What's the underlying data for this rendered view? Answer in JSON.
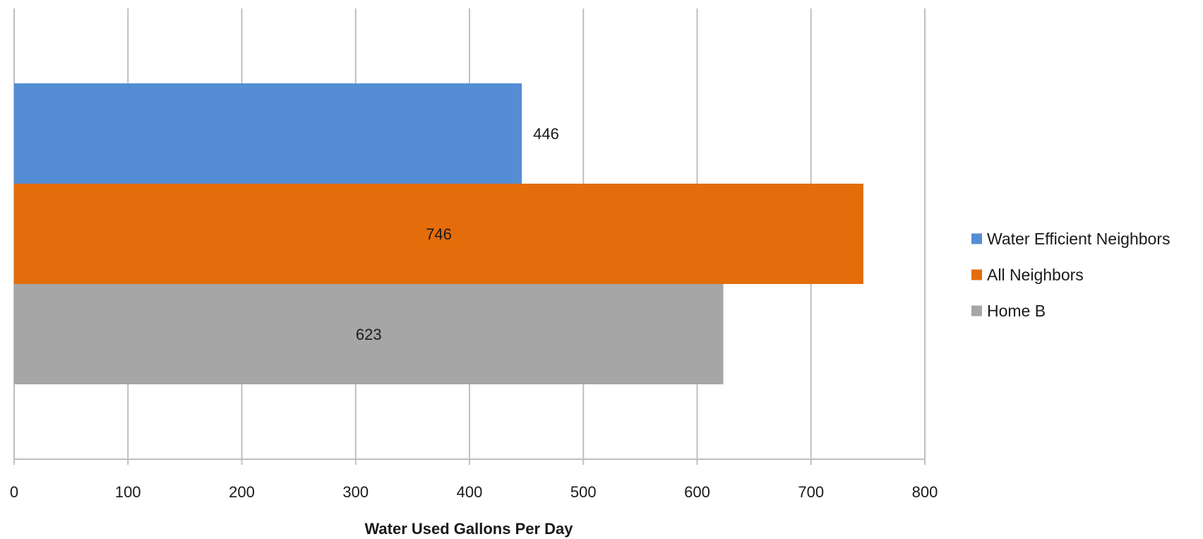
{
  "chart_data": {
    "type": "bar",
    "orientation": "horizontal",
    "title": "",
    "xlabel": "Water Used Gallons Per Day",
    "ylabel": "",
    "xlim": [
      0,
      800
    ],
    "x_ticks": [
      0,
      100,
      200,
      300,
      400,
      500,
      600,
      700,
      800
    ],
    "grid": true,
    "legend_position": "right",
    "series": [
      {
        "name": "Water Efficient Neighbors",
        "value": 446,
        "label": "446",
        "color": "#548DD4"
      },
      {
        "name": "All Neighbors",
        "value": 746,
        "label": "746",
        "color": "#E46C0A"
      },
      {
        "name": "Home B",
        "value": 623,
        "label": "623",
        "color": "#A6A6A6"
      }
    ]
  }
}
